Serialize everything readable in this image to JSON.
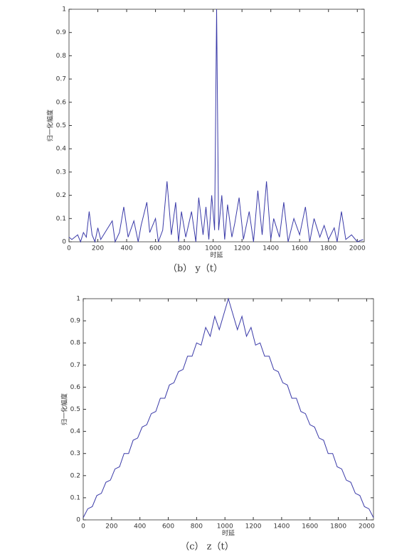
{
  "chart_data": [
    {
      "type": "line",
      "ylabel": "归一化幅度",
      "xlabel": "时延",
      "caption": "（b） y（t）",
      "xlim": [
        0,
        2048
      ],
      "ylim": [
        0,
        1
      ],
      "xticks": [
        0,
        200,
        400,
        600,
        800,
        1000,
        1200,
        1400,
        1600,
        1800,
        2000
      ],
      "yticks": [
        0,
        0.1,
        0.2,
        0.3,
        0.4,
        0.5,
        0.6,
        0.7,
        0.8,
        0.9,
        1
      ],
      "x": [
        0,
        20,
        40,
        60,
        80,
        100,
        120,
        140,
        160,
        180,
        200,
        220,
        260,
        300,
        320,
        350,
        380,
        410,
        450,
        480,
        500,
        540,
        560,
        600,
        620,
        650,
        680,
        710,
        740,
        760,
        780,
        810,
        850,
        880,
        900,
        930,
        950,
        970,
        990,
        1010,
        1024,
        1038,
        1060,
        1080,
        1100,
        1130,
        1150,
        1180,
        1210,
        1250,
        1280,
        1310,
        1340,
        1370,
        1400,
        1420,
        1460,
        1490,
        1520,
        1560,
        1600,
        1640,
        1670,
        1700,
        1740,
        1770,
        1800,
        1840,
        1860,
        1890,
        1920,
        1960,
        2000,
        2040
      ],
      "series": [
        {
          "color": "#3a3aa8",
          "values": [
            0.02,
            0.01,
            0.02,
            0.03,
            0.0,
            0.04,
            0.02,
            0.13,
            0.03,
            0.0,
            0.06,
            0.01,
            0.05,
            0.09,
            0.0,
            0.04,
            0.15,
            0.02,
            0.09,
            0.0,
            0.07,
            0.17,
            0.04,
            0.1,
            0.0,
            0.05,
            0.26,
            0.03,
            0.17,
            0.0,
            0.13,
            0.02,
            0.13,
            0.0,
            0.19,
            0.03,
            0.15,
            0.01,
            0.2,
            0.05,
            1.0,
            0.05,
            0.2,
            0.01,
            0.16,
            0.02,
            0.08,
            0.19,
            0.01,
            0.13,
            0.0,
            0.22,
            0.03,
            0.26,
            0.01,
            0.1,
            0.02,
            0.17,
            0.0,
            0.1,
            0.03,
            0.15,
            0.0,
            0.1,
            0.02,
            0.07,
            0.01,
            0.06,
            0.0,
            0.13,
            0.01,
            0.03,
            0.0,
            0.01
          ]
        }
      ]
    },
    {
      "type": "line",
      "ylabel": "归一化幅度",
      "xlabel": "时延",
      "caption": "（c） z（t）",
      "xlim": [
        0,
        2048
      ],
      "ylim": [
        0,
        1
      ],
      "xticks": [
        0,
        200,
        400,
        600,
        800,
        1000,
        1200,
        1400,
        1600,
        1800,
        2000
      ],
      "yticks": [
        0,
        0.1,
        0.2,
        0.3,
        0.4,
        0.5,
        0.6,
        0.7,
        0.8,
        0.9,
        1
      ],
      "x": [
        0,
        32,
        64,
        96,
        128,
        160,
        192,
        224,
        256,
        288,
        320,
        352,
        384,
        416,
        448,
        480,
        512,
        544,
        576,
        608,
        640,
        672,
        704,
        736,
        768,
        800,
        832,
        864,
        896,
        928,
        960,
        992,
        1024,
        1056,
        1088,
        1120,
        1152,
        1184,
        1216,
        1248,
        1280,
        1312,
        1344,
        1376,
        1408,
        1440,
        1472,
        1504,
        1536,
        1568,
        1600,
        1632,
        1664,
        1696,
        1728,
        1760,
        1792,
        1824,
        1856,
        1888,
        1920,
        1952,
        1984,
        2016,
        2048
      ],
      "series": [
        {
          "color": "#3a3aa8",
          "values": [
            0.01,
            0.05,
            0.06,
            0.11,
            0.12,
            0.17,
            0.18,
            0.23,
            0.24,
            0.3,
            0.3,
            0.36,
            0.37,
            0.42,
            0.43,
            0.48,
            0.49,
            0.55,
            0.55,
            0.61,
            0.62,
            0.67,
            0.68,
            0.74,
            0.74,
            0.8,
            0.79,
            0.87,
            0.83,
            0.92,
            0.86,
            0.93,
            1.0,
            0.93,
            0.86,
            0.92,
            0.83,
            0.87,
            0.79,
            0.8,
            0.74,
            0.74,
            0.68,
            0.67,
            0.62,
            0.61,
            0.55,
            0.55,
            0.49,
            0.48,
            0.43,
            0.42,
            0.37,
            0.36,
            0.3,
            0.3,
            0.24,
            0.23,
            0.18,
            0.17,
            0.12,
            0.11,
            0.06,
            0.05,
            0.01
          ]
        }
      ]
    }
  ]
}
